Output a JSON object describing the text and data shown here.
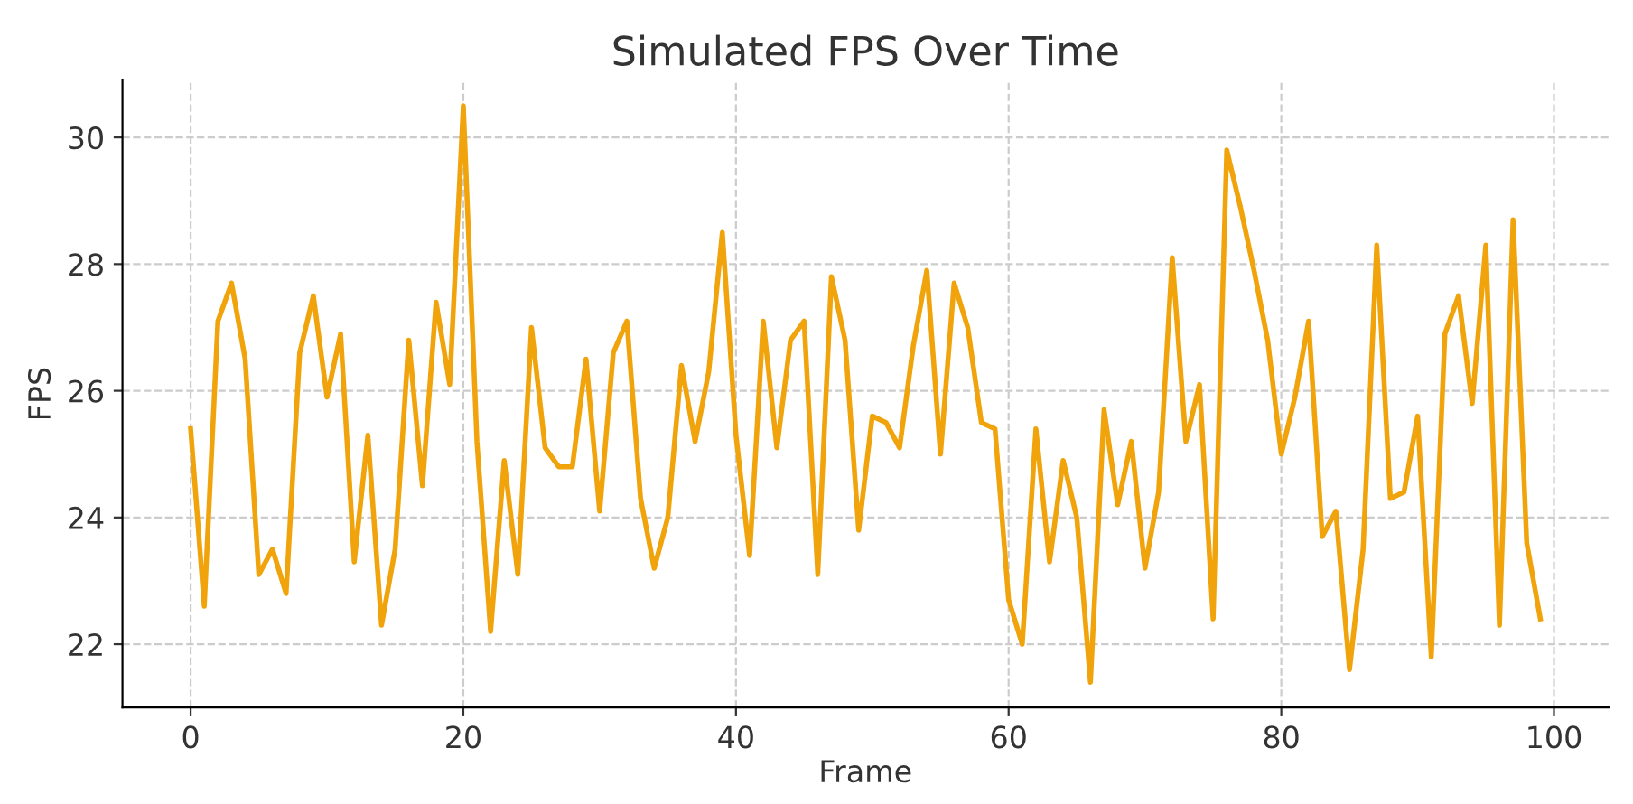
{
  "chart_data": {
    "type": "line",
    "title": "Simulated FPS Over Time",
    "xlabel": "Frame",
    "ylabel": "FPS",
    "x": [
      0,
      1,
      2,
      3,
      4,
      5,
      6,
      7,
      8,
      9,
      10,
      11,
      12,
      13,
      14,
      15,
      16,
      17,
      18,
      19,
      20,
      21,
      22,
      23,
      24,
      25,
      26,
      27,
      28,
      29,
      30,
      31,
      32,
      33,
      34,
      35,
      36,
      37,
      38,
      39,
      40,
      41,
      42,
      43,
      44,
      45,
      46,
      47,
      48,
      49,
      50,
      51,
      52,
      53,
      54,
      55,
      56,
      57,
      58,
      59,
      60,
      61,
      62,
      63,
      64,
      65,
      66,
      67,
      68,
      69,
      70,
      71,
      72,
      73,
      74,
      75,
      76,
      77,
      78,
      79,
      80,
      81,
      82,
      83,
      84,
      85,
      86,
      87,
      88,
      89,
      90,
      91,
      92,
      93,
      94,
      95,
      96,
      97,
      98,
      99
    ],
    "series": [
      {
        "color": "#f0a30a",
        "values": [
          25.4,
          22.6,
          27.1,
          27.7,
          26.5,
          23.1,
          23.5,
          22.8,
          26.6,
          27.5,
          25.9,
          26.9,
          23.3,
          25.3,
          22.3,
          23.5,
          26.8,
          24.5,
          27.4,
          26.1,
          30.5,
          25.2,
          22.2,
          24.9,
          23.1,
          27.0,
          25.1,
          24.8,
          24.8,
          26.5,
          24.1,
          26.6,
          27.1,
          24.3,
          23.2,
          24.0,
          26.4,
          25.2,
          26.3,
          28.5,
          25.3,
          23.4,
          27.1,
          25.1,
          26.8,
          27.1,
          23.1,
          27.8,
          26.8,
          23.8,
          25.6,
          25.5,
          25.1,
          26.7,
          27.9,
          25.0,
          27.7,
          27.0,
          25.5,
          25.4,
          22.7,
          22.0,
          25.4,
          23.3,
          24.9,
          24.0,
          21.4,
          25.7,
          24.2,
          25.2,
          23.2,
          24.4,
          28.1,
          25.2,
          26.1,
          22.4,
          29.8,
          28.9,
          27.9,
          26.8,
          25.0,
          25.9,
          27.1,
          23.7,
          24.1,
          21.6,
          23.5,
          28.3,
          24.3,
          24.4,
          25.6,
          21.8,
          26.9,
          27.5,
          25.8,
          28.3,
          22.3,
          28.7,
          23.6,
          22.4
        ]
      }
    ],
    "xlim": [
      -5,
      104
    ],
    "ylim": [
      21.0,
      30.9
    ],
    "xticks": [
      0,
      20,
      40,
      60,
      80,
      100
    ],
    "yticks": [
      22,
      24,
      26,
      28,
      30
    ],
    "grid": true,
    "marker": "none",
    "line_style": "solid"
  }
}
